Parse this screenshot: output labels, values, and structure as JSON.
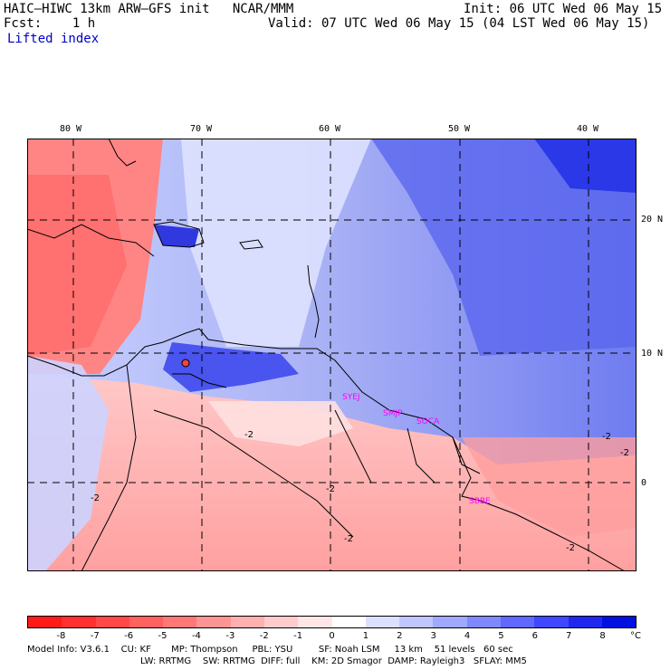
{
  "header": {
    "model_line": "HAIC–HIWC 13km ARW–GFS init   NCAR/MMM",
    "fcst_line": "Fcst:    1 h",
    "init_line": "Init: 06 UTC Wed 06 May 15",
    "valid_line": "Valid: 07 UTC Wed 06 May 15 (04 LST Wed 06 May 15)",
    "field_name": "Lifted index"
  },
  "map": {
    "lon_labels": [
      "80 W",
      "70 W",
      "60 W",
      "50 W",
      "40 W"
    ],
    "lat_labels": [
      "20 N",
      "10 N",
      "0"
    ],
    "contour_labels": [
      "-2",
      "-2",
      "-2",
      "-2",
      "-2",
      "-2",
      "-2"
    ],
    "stations": [
      "SYEJ",
      "SMJP",
      "SOCA",
      "SBBE"
    ],
    "station_color": "#ff00ff"
  },
  "colorbar": {
    "levels": [
      "-8",
      "-7",
      "-6",
      "-5",
      "-4",
      "-3",
      "-2",
      "-1",
      "0",
      "1",
      "2",
      "3",
      "4",
      "5",
      "6",
      "7",
      "8"
    ],
    "unit": "°C",
    "colors": [
      "#ff1a1a",
      "#ff3030",
      "#ff4848",
      "#ff6060",
      "#ff7878",
      "#ff9494",
      "#ffb0b0",
      "#ffcccc",
      "#ffe6e6",
      "#ffffff",
      "#dce0ff",
      "#c0c6ff",
      "#a0a8ff",
      "#8088ff",
      "#6068ff",
      "#4048ff",
      "#2028f0",
      "#0010e0"
    ]
  },
  "model_info": {
    "line1": "Model Info: V3.6.1    CU: KF       MP: Thompson     PBL: YSU         SF: Noah LSM     13 km    51 levels   60 sec",
    "line2": "LW: RRTMG    SW: RRTMG  DIFF: full    KM: 2D Smagor  DAMP: Rayleigh3   SFLAY: MM5"
  }
}
